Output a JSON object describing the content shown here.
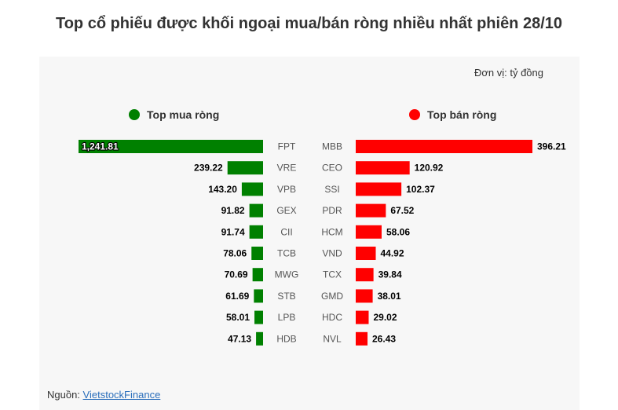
{
  "title": "Top cổ phiếu được khối ngoại mua/bán ròng nhiều nhất phiên 28/10",
  "unit": "Đơn vị: tỷ đồng",
  "legend": {
    "buy_label": "Top mua ròng",
    "sell_label": "Top bán ròng",
    "buy_color": "#008000",
    "sell_color": "#ff0000"
  },
  "source": {
    "prefix": "Nguồn: ",
    "name": "VietstockFinance"
  },
  "chart_data": {
    "type": "bar",
    "layout": "diverging-horizontal",
    "series": [
      {
        "name": "Top mua ròng",
        "color": "#008000",
        "categories": [
          "FPT",
          "VRE",
          "VPB",
          "GEX",
          "CII",
          "TCB",
          "MWG",
          "STB",
          "LPB",
          "HDB"
        ],
        "values": [
          1241.81,
          239.22,
          143.2,
          91.82,
          91.74,
          78.06,
          70.69,
          61.69,
          58.01,
          47.13
        ],
        "labels": [
          "1,241.81",
          "239.22",
          "143.20",
          "91.82",
          "91.74",
          "78.06",
          "70.69",
          "61.69",
          "58.01",
          "47.13"
        ]
      },
      {
        "name": "Top bán ròng",
        "color": "#ff0000",
        "categories": [
          "MBB",
          "CEO",
          "SSI",
          "PDR",
          "HCM",
          "VND",
          "TCX",
          "GMD",
          "HDC",
          "NVL"
        ],
        "values": [
          396.21,
          120.92,
          102.37,
          67.52,
          58.06,
          44.92,
          39.84,
          38.01,
          29.02,
          26.43
        ],
        "labels": [
          "396.21",
          "120.92",
          "102.37",
          "67.52",
          "58.06",
          "44.92",
          "39.84",
          "38.01",
          "29.02",
          "26.43"
        ]
      }
    ]
  }
}
